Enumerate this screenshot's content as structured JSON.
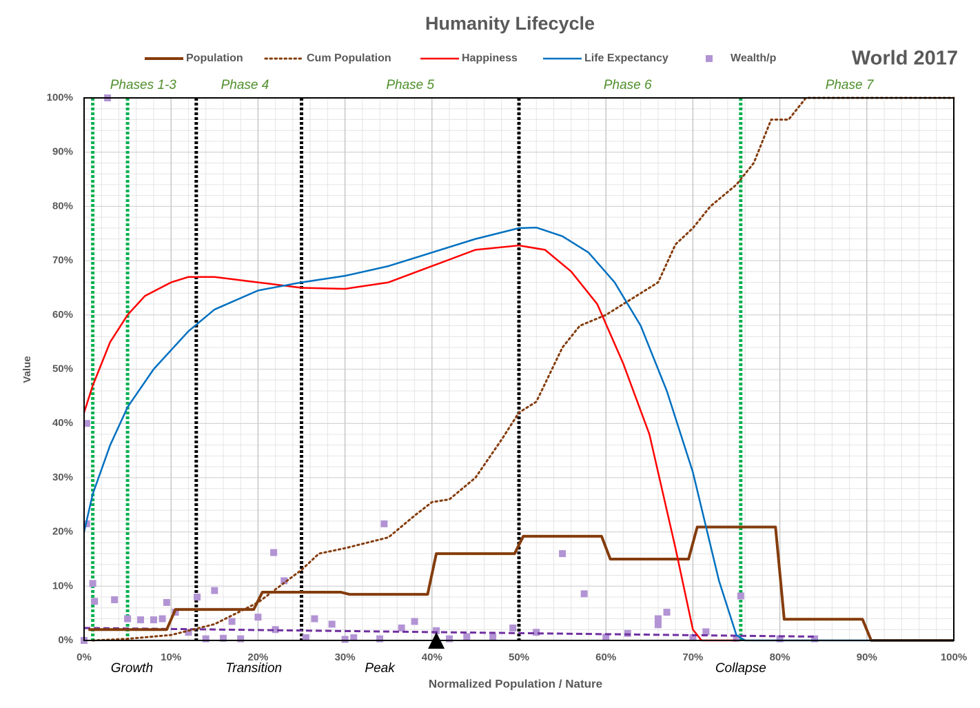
{
  "chart_data": {
    "type": "line",
    "title": "Humanity Lifecycle",
    "corner_label": "World 2017",
    "x_label": "Normalized Population / Nature",
    "y_label": "Value",
    "xlim": [
      0,
      100
    ],
    "ylim": [
      0,
      100
    ],
    "xticks": [
      {
        "value": 0,
        "label": "0%"
      },
      {
        "value": 10,
        "label": "10%"
      },
      {
        "value": 20,
        "label": "20%"
      },
      {
        "value": 30,
        "label": "30%"
      },
      {
        "value": 40,
        "label": "40%"
      },
      {
        "value": 50,
        "label": "50%"
      },
      {
        "value": 60,
        "label": "60%"
      },
      {
        "value": 70,
        "label": "70%"
      },
      {
        "value": 80,
        "label": "80%"
      },
      {
        "value": 90,
        "label": "90%"
      },
      {
        "value": 100,
        "label": "100%"
      }
    ],
    "yticks": [
      {
        "value": 0,
        "label": "0%"
      },
      {
        "value": 10,
        "label": "10%"
      },
      {
        "value": 20,
        "label": "20%"
      },
      {
        "value": 30,
        "label": "30%"
      },
      {
        "value": 40,
        "label": "40%"
      },
      {
        "value": 50,
        "label": "50%"
      },
      {
        "value": 60,
        "label": "60%"
      },
      {
        "value": 70,
        "label": "70%"
      },
      {
        "value": 80,
        "label": "80%"
      },
      {
        "value": 90,
        "label": "90%"
      },
      {
        "value": 100,
        "label": "100%"
      }
    ],
    "grid": true,
    "legend": "top",
    "series": [
      {
        "name": "Population",
        "color": "#843c0c",
        "style": "solid",
        "width": 4,
        "x": [
          0.5,
          9.5,
          10.5,
          19.5,
          20.5,
          29.5,
          30.5,
          39.5,
          40.5,
          49.5,
          50.5,
          59.5,
          60.5,
          69.5,
          70.5,
          79.5,
          80.5,
          89.5,
          90.5,
          100
        ],
        "values": [
          2,
          2,
          5.7,
          5.7,
          8.9,
          8.9,
          8.5,
          8.5,
          16,
          16,
          19.2,
          19.2,
          15,
          15,
          20.9,
          20.9,
          3.9,
          3.9,
          0,
          0
        ]
      },
      {
        "name": "Cum Population",
        "color": "#843c0c",
        "style": "dotted",
        "width": 3,
        "x": [
          1,
          5,
          10,
          15,
          20,
          25,
          27,
          30,
          35,
          38,
          40,
          42,
          45,
          48,
          50,
          52,
          55,
          57,
          60,
          63,
          66,
          68,
          70,
          72,
          75,
          77,
          79,
          81,
          83,
          100
        ],
        "values": [
          0,
          0.3,
          1,
          3,
          7,
          13,
          16,
          17,
          19,
          23,
          25.5,
          26,
          30,
          37,
          42,
          44,
          54,
          58,
          60,
          63,
          66,
          73,
          76,
          80,
          84,
          88,
          96,
          96,
          100,
          100
        ]
      },
      {
        "name": "Happiness",
        "color": "#ff0000",
        "style": "solid",
        "width": 2.5,
        "x": [
          0,
          1,
          3,
          5,
          7,
          10,
          12,
          15,
          20,
          25,
          30,
          35,
          40,
          45,
          50,
          53,
          56,
          59,
          62,
          65,
          68,
          70,
          71,
          75
        ],
        "values": [
          42,
          47,
          55,
          60,
          63.5,
          66,
          67,
          67,
          66,
          65,
          64.8,
          66,
          69,
          72,
          72.8,
          72,
          68,
          62,
          51,
          38,
          17,
          2,
          0,
          0
        ]
      },
      {
        "name": "Life Expectancy",
        "color": "#0070c0",
        "style": "solid",
        "width": 2.5,
        "x": [
          0,
          1,
          3,
          5,
          8,
          12,
          15,
          20,
          25,
          30,
          35,
          40,
          45,
          50,
          52,
          55,
          58,
          61,
          64,
          67,
          70,
          73,
          75,
          76,
          100
        ],
        "values": [
          20,
          27,
          36,
          43,
          50,
          57,
          61,
          64.5,
          66,
          67.2,
          69,
          71.5,
          74,
          76,
          76.1,
          74.5,
          71.5,
          66,
          58,
          46,
          31,
          11,
          1,
          0,
          0
        ]
      },
      {
        "name": "Wealth/p",
        "color": "#b294d4",
        "style": "scatter",
        "width": 0,
        "x": [
          0,
          0.3,
          0.3,
          1,
          1.2,
          2.7,
          3.5,
          5,
          6.5,
          8,
          9,
          9.5,
          10.5,
          12,
          13,
          14,
          15,
          16,
          17,
          18,
          20,
          21.8,
          22,
          23,
          25.5,
          26.5,
          28.5,
          30,
          31,
          34,
          34.5,
          36.5,
          38,
          40.5,
          42,
          44,
          47,
          49.3,
          52,
          55,
          57.5,
          60,
          62.5,
          66,
          66,
          67,
          70,
          71.5,
          75,
          75.5,
          80,
          84
        ],
        "values": [
          0,
          40,
          21.5,
          10.5,
          7.2,
          100,
          7.5,
          4,
          3.8,
          3.8,
          4,
          7,
          5.2,
          1.5,
          8,
          0.3,
          9.2,
          0.4,
          3.5,
          0.3,
          4.3,
          16.2,
          2,
          11,
          0.5,
          4,
          3,
          0.2,
          0.5,
          0.3,
          21.5,
          2.3,
          3.5,
          1.8,
          0.3,
          0.7,
          0.6,
          2.3,
          1.5,
          16,
          8.6,
          0.6,
          1.3,
          4,
          2.9,
          5.2,
          0.5,
          1.6,
          0.4,
          8.2,
          0.3,
          0.3
        ]
      }
    ],
    "trend": {
      "color": "#7030a0",
      "x": [
        0,
        84
      ],
      "values": [
        2.3,
        0.7
      ]
    },
    "phase_lines": [
      {
        "x": 1,
        "color": "#00b050"
      },
      {
        "x": 5,
        "color": "#00b050"
      },
      {
        "x": 12.9,
        "color": "#000000"
      },
      {
        "x": 25,
        "color": "#000000"
      },
      {
        "x": 50,
        "color": "#000000"
      },
      {
        "x": 75.5,
        "color": "#00b050"
      }
    ],
    "phase_labels": [
      {
        "text": "Phases 1-3",
        "x": 6.8
      },
      {
        "text": "Phase 4",
        "x": 18.5
      },
      {
        "text": "Phase 5",
        "x": 37.5
      },
      {
        "text": "Phase 6",
        "x": 62.5
      },
      {
        "text": "Phase 7",
        "x": 88
      }
    ],
    "stage_labels": [
      {
        "text": "Growth",
        "x": 5.5
      },
      {
        "text": "Transition",
        "x": 19.5
      },
      {
        "text": "Peak",
        "x": 34
      },
      {
        "text": "Collapse",
        "x": 75.5
      }
    ],
    "marker": {
      "x": 40.5
    }
  }
}
